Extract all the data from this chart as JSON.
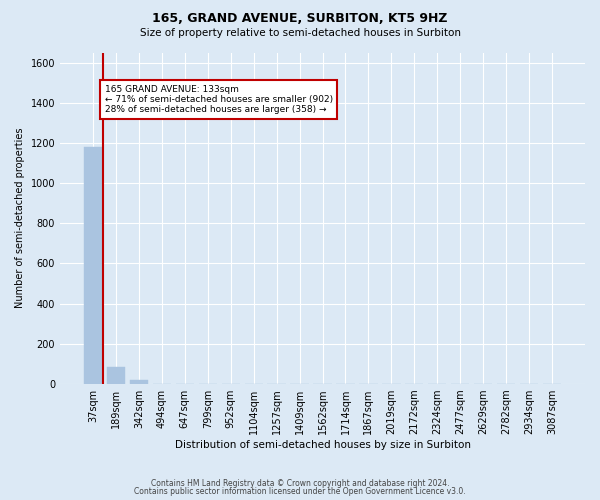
{
  "title1": "165, GRAND AVENUE, SURBITON, KT5 9HZ",
  "title2": "Size of property relative to semi-detached houses in Surbiton",
  "xlabel": "Distribution of semi-detached houses by size in Surbiton",
  "ylabel": "Number of semi-detached properties",
  "categories": [
    "37sqm",
    "189sqm",
    "342sqm",
    "494sqm",
    "647sqm",
    "799sqm",
    "952sqm",
    "1104sqm",
    "1257sqm",
    "1409sqm",
    "1562sqm",
    "1714sqm",
    "1867sqm",
    "2019sqm",
    "2172sqm",
    "2324sqm",
    "2477sqm",
    "2629sqm",
    "2782sqm",
    "2934sqm",
    "3087sqm"
  ],
  "values": [
    1180,
    85,
    20,
    2,
    1,
    1,
    0,
    0,
    0,
    0,
    0,
    0,
    0,
    0,
    0,
    0,
    0,
    0,
    0,
    0,
    0
  ],
  "bar_color": "#aac4e0",
  "highlight_color": "#c00000",
  "annotation_text_line1": "165 GRAND AVENUE: 133sqm",
  "annotation_text_line2": "← 71% of semi-detached houses are smaller (902)",
  "annotation_text_line3": "28% of semi-detached houses are larger (358) →",
  "ylim": [
    0,
    1650
  ],
  "yticks": [
    0,
    200,
    400,
    600,
    800,
    1000,
    1200,
    1400,
    1600
  ],
  "footnote1": "Contains HM Land Registry data © Crown copyright and database right 2024.",
  "footnote2": "Contains public sector information licensed under the Open Government Licence v3.0.",
  "bg_color": "#dce9f5",
  "grid_color": "white",
  "annotation_box_color": "white",
  "annotation_border_color": "#c00000",
  "red_line_x": 0.42,
  "title1_fontsize": 9,
  "title2_fontsize": 7.5,
  "ylabel_fontsize": 7,
  "xlabel_fontsize": 7.5,
  "tick_fontsize": 7,
  "footnote_fontsize": 5.5
}
